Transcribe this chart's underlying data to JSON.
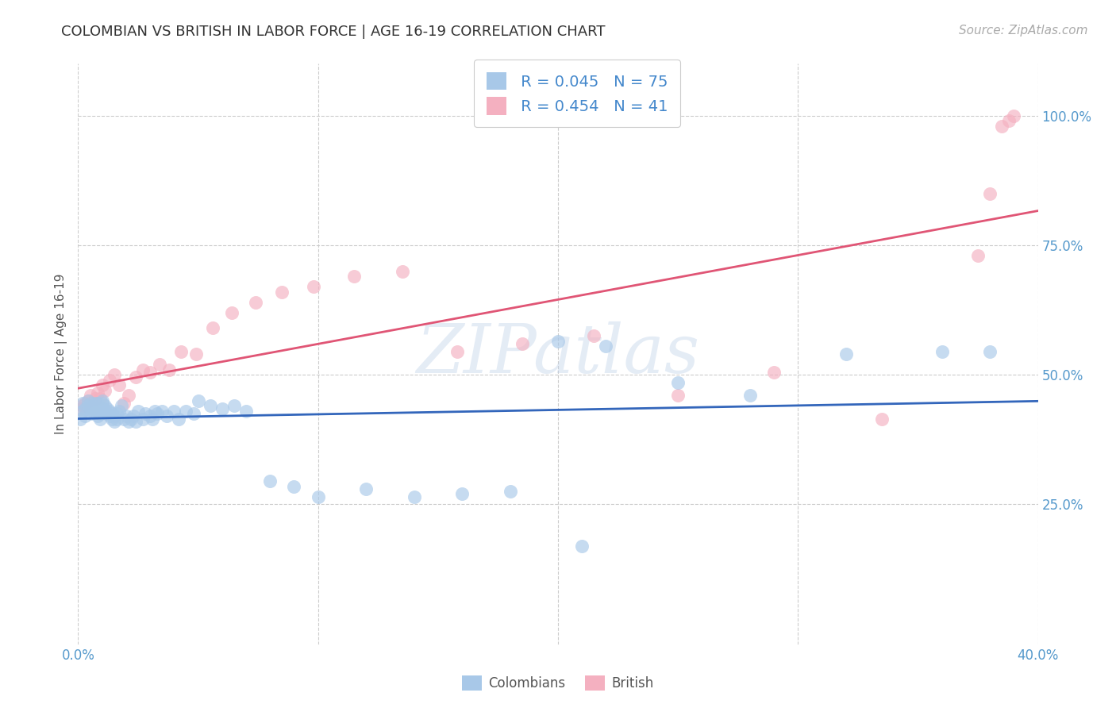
{
  "title": "COLOMBIAN VS BRITISH IN LABOR FORCE | AGE 16-19 CORRELATION CHART",
  "source": "Source: ZipAtlas.com",
  "ylabel": "In Labor Force | Age 16-19",
  "xlim": [
    0.0,
    0.4
  ],
  "ylim": [
    -0.02,
    1.1
  ],
  "xtick_positions": [
    0.0,
    0.1,
    0.2,
    0.3,
    0.4
  ],
  "xtick_labels": [
    "0.0%",
    "",
    "",
    "",
    "40.0%"
  ],
  "ytick_positions": [
    0.25,
    0.5,
    0.75,
    1.0
  ],
  "ytick_labels": [
    "25.0%",
    "50.0%",
    "75.0%",
    "100.0%"
  ],
  "colombian_color": "#a8c8e8",
  "british_color": "#f4b0c0",
  "colombian_line_color": "#3366bb",
  "british_line_color": "#e05575",
  "background_color": "#ffffff",
  "grid_color": "#cccccc",
  "watermark": "ZIPatlas",
  "r_colombian": "0.045",
  "n_colombian": "75",
  "r_british": "0.454",
  "n_british": "41",
  "colombian_x": [
    0.001,
    0.002,
    0.002,
    0.003,
    0.003,
    0.004,
    0.004,
    0.005,
    0.005,
    0.005,
    0.006,
    0.006,
    0.007,
    0.007,
    0.008,
    0.008,
    0.008,
    0.009,
    0.009,
    0.01,
    0.01,
    0.01,
    0.011,
    0.011,
    0.012,
    0.012,
    0.013,
    0.013,
    0.014,
    0.014,
    0.015,
    0.015,
    0.016,
    0.016,
    0.017,
    0.018,
    0.019,
    0.02,
    0.021,
    0.022,
    0.023,
    0.024,
    0.025,
    0.027,
    0.028,
    0.03,
    0.031,
    0.032,
    0.033,
    0.035,
    0.037,
    0.04,
    0.042,
    0.045,
    0.048,
    0.05,
    0.055,
    0.06,
    0.065,
    0.07,
    0.08,
    0.09,
    0.1,
    0.12,
    0.14,
    0.16,
    0.18,
    0.2,
    0.22,
    0.25,
    0.28,
    0.32,
    0.36,
    0.21,
    0.38
  ],
  "colombian_y": [
    0.415,
    0.43,
    0.445,
    0.42,
    0.435,
    0.44,
    0.45,
    0.425,
    0.435,
    0.445,
    0.43,
    0.44,
    0.435,
    0.445,
    0.42,
    0.43,
    0.445,
    0.415,
    0.425,
    0.435,
    0.445,
    0.45,
    0.43,
    0.44,
    0.425,
    0.435,
    0.42,
    0.43,
    0.415,
    0.425,
    0.41,
    0.42,
    0.415,
    0.425,
    0.43,
    0.44,
    0.415,
    0.42,
    0.41,
    0.415,
    0.42,
    0.41,
    0.43,
    0.415,
    0.425,
    0.42,
    0.415,
    0.43,
    0.425,
    0.43,
    0.42,
    0.43,
    0.415,
    0.43,
    0.425,
    0.45,
    0.44,
    0.435,
    0.44,
    0.43,
    0.295,
    0.285,
    0.265,
    0.28,
    0.265,
    0.27,
    0.275,
    0.565,
    0.555,
    0.485,
    0.46,
    0.54,
    0.545,
    0.17,
    0.545
  ],
  "british_x": [
    0.001,
    0.002,
    0.003,
    0.004,
    0.005,
    0.006,
    0.007,
    0.008,
    0.009,
    0.01,
    0.011,
    0.013,
    0.015,
    0.017,
    0.019,
    0.021,
    0.024,
    0.027,
    0.03,
    0.034,
    0.038,
    0.043,
    0.049,
    0.056,
    0.064,
    0.074,
    0.085,
    0.098,
    0.115,
    0.135,
    0.158,
    0.185,
    0.215,
    0.25,
    0.29,
    0.335,
    0.375,
    0.38,
    0.385,
    0.388,
    0.39
  ],
  "british_y": [
    0.435,
    0.44,
    0.445,
    0.45,
    0.46,
    0.435,
    0.455,
    0.465,
    0.455,
    0.48,
    0.47,
    0.49,
    0.5,
    0.48,
    0.445,
    0.46,
    0.495,
    0.51,
    0.505,
    0.52,
    0.51,
    0.545,
    0.54,
    0.59,
    0.62,
    0.64,
    0.66,
    0.67,
    0.69,
    0.7,
    0.545,
    0.56,
    0.575,
    0.46,
    0.505,
    0.415,
    0.73,
    0.85,
    0.98,
    0.99,
    1.0
  ],
  "title_fontsize": 13,
  "axis_label_fontsize": 11,
  "tick_fontsize": 12,
  "legend_fontsize": 14,
  "source_fontsize": 11
}
